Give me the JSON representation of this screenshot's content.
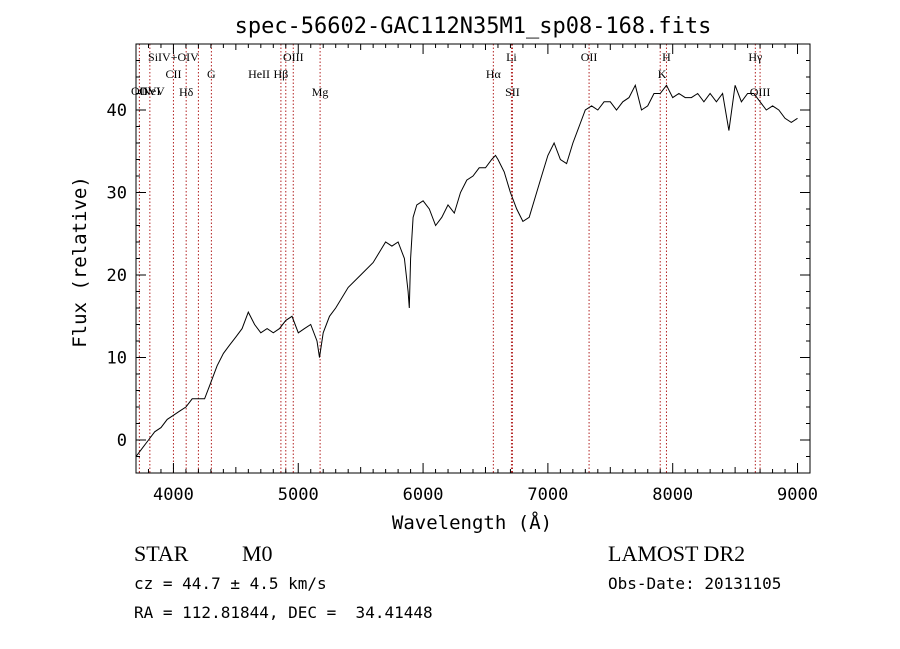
{
  "chart_data": {
    "type": "line",
    "title": "spec-56602-GAC112N35M1_sp08-168.fits",
    "xlabel": "Wavelength (Å)",
    "ylabel": "Flux (relative)",
    "xlim": [
      3700,
      9100
    ],
    "ylim": [
      -4,
      48
    ],
    "x_ticks": [
      4000,
      5000,
      6000,
      7000,
      8000,
      9000
    ],
    "y_ticks": [
      0,
      10,
      20,
      30,
      40
    ],
    "grid": false,
    "series": [
      {
        "x": [
          3700,
          3750,
          3800,
          3850,
          3900,
          3950,
          4000,
          4050,
          4100,
          4150,
          4200,
          4250,
          4300,
          4350,
          4400,
          4450,
          4500,
          4550,
          4600,
          4650,
          4700,
          4750,
          4800,
          4850,
          4900,
          4950,
          5000,
          5050,
          5100,
          5150,
          5170,
          5200,
          5250,
          5300,
          5400,
          5500,
          5600,
          5700,
          5750,
          5800,
          5850,
          5880,
          5890,
          5900,
          5920,
          5950,
          6000,
          6050,
          6100,
          6150,
          6200,
          6250,
          6300,
          6350,
          6400,
          6450,
          6500,
          6550,
          6580,
          6600,
          6650,
          6700,
          6750,
          6800,
          6850,
          6900,
          6950,
          7000,
          7050,
          7100,
          7150,
          7200,
          7250,
          7300,
          7350,
          7400,
          7450,
          7500,
          7550,
          7600,
          7650,
          7700,
          7750,
          7800,
          7850,
          7900,
          7950,
          8000,
          8050,
          8100,
          8150,
          8200,
          8250,
          8300,
          8350,
          8400,
          8450,
          8500,
          8550,
          8600,
          8650,
          8700,
          8750,
          8800,
          8850,
          8900,
          8950,
          9000
        ],
        "y": [
          -2,
          -1,
          0,
          1,
          1.5,
          2.5,
          3,
          3.5,
          4,
          5,
          5,
          5,
          7,
          9,
          10.5,
          11.5,
          12.5,
          13.5,
          15.5,
          14,
          13,
          13.5,
          13,
          13.5,
          14.5,
          15,
          13,
          13.5,
          14,
          12,
          10,
          13,
          15,
          16,
          18.5,
          20,
          21.5,
          24,
          23.5,
          24,
          22,
          18,
          16,
          22,
          27,
          28.5,
          29,
          28,
          26,
          27,
          28.5,
          27.5,
          30,
          31.5,
          32,
          33,
          33,
          34,
          34.5,
          34,
          32.5,
          30,
          28,
          26.5,
          27,
          29.5,
          32,
          34.5,
          36,
          34,
          33.5,
          36,
          38,
          40,
          40.5,
          40,
          41,
          41,
          40,
          41,
          41.5,
          43,
          40,
          40.5,
          42,
          42,
          43,
          41.5,
          42,
          41.5,
          41.5,
          42,
          41,
          42,
          41,
          42,
          37.5,
          43,
          41,
          42,
          42,
          41,
          40,
          40.5,
          40,
          39,
          38.5,
          39
        ]
      }
    ],
    "lines": [
      {
        "name": "OVI",
        "x": 3811,
        "row": 3
      },
      {
        "name": "NeV",
        "x": 3840,
        "row": 3
      },
      {
        "name": "OII",
        "x": 3727,
        "row": 3
      },
      {
        "name": "SiIV+OIV",
        "x": 4000,
        "row": 0
      },
      {
        "name": "CII",
        "x": 4000,
        "row": 1
      },
      {
        "name": "Hδ",
        "x": 4102,
        "row": 2
      },
      {
        "name": "G",
        "x": 4304,
        "row": 1
      },
      {
        "name": "OIII",
        "x": 4960,
        "row": 0
      },
      {
        "name": "Hβ",
        "x": 4861,
        "row": 1
      },
      {
        "name": "HeII",
        "x": 4686,
        "row": 1
      },
      {
        "name": "Mg",
        "x": 5175,
        "row": 2
      },
      {
        "name": "Hα",
        "x": 6563,
        "row": 1
      },
      {
        "name": "Li",
        "x": 6708,
        "row": 0
      },
      {
        "name": "SII",
        "x": 6716,
        "row": 2
      },
      {
        "name": "OII",
        "x": 7330,
        "row": 0
      },
      {
        "name": "K",
        "x": 7915,
        "row": 1
      },
      {
        "name": "H",
        "x": 7950,
        "row": 0
      },
      {
        "name": "Hγ",
        "x": 8662,
        "row": 0
      },
      {
        "name": "OIII",
        "x": 8700,
        "row": 2
      }
    ],
    "line_markers_x": [
      3727,
      3811,
      4000,
      4102,
      4200,
      4304,
      4861,
      4900,
      4960,
      5175,
      6563,
      6708,
      6716,
      7330,
      7900,
      7950,
      8662,
      8700
    ]
  },
  "info": {
    "class": "STAR",
    "subclass": "M0",
    "survey": "LAMOST DR2",
    "cz": "cz = 44.7 ± 4.5 km/s",
    "obs_date": "Obs-Date: 20131105",
    "coords": "RA = 112.81844, DEC =  34.41448"
  }
}
